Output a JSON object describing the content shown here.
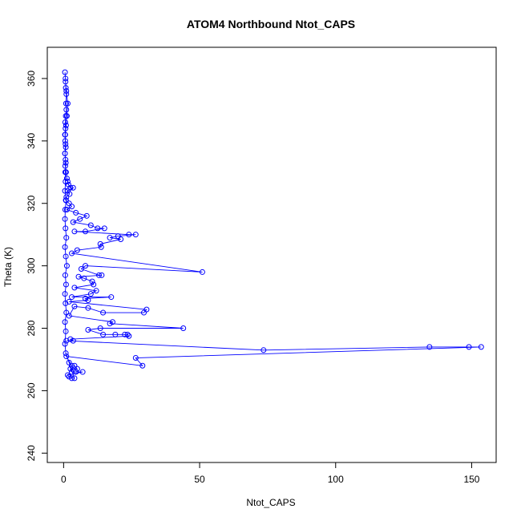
{
  "chart_data": {
    "type": "line",
    "title": "ATOM4 Northbound Ntot_CAPS",
    "xlabel": "Ntot_CAPS",
    "ylabel": "Theta (K)",
    "xlim": [
      -6,
      159
    ],
    "ylim": [
      237,
      370
    ],
    "xticks": [
      0,
      50,
      100,
      150
    ],
    "yticks": [
      240,
      260,
      280,
      300,
      320,
      340,
      360
    ],
    "grid": false,
    "legend": "none",
    "series_color": "#0000ff",
    "marker": "open-circle",
    "points": [
      [
        0.5,
        362
      ],
      [
        0.7,
        360
      ],
      [
        0.8,
        357
      ],
      [
        1.0,
        355
      ],
      [
        0.9,
        352
      ],
      [
        1.0,
        350
      ],
      [
        0.8,
        348
      ],
      [
        0.6,
        346
      ],
      [
        0.7,
        344
      ],
      [
        0.5,
        342
      ],
      [
        0.6,
        340
      ],
      [
        0.8,
        338
      ],
      [
        0.5,
        336
      ],
      [
        0.7,
        334
      ],
      [
        0.6,
        332
      ],
      [
        0.9,
        330
      ],
      [
        1.2,
        328
      ],
      [
        1.5,
        327
      ],
      [
        1.8,
        326
      ],
      [
        2.5,
        325
      ],
      [
        3.5,
        325
      ],
      [
        1.5,
        324
      ],
      [
        2.2,
        323
      ],
      [
        1.0,
        322
      ],
      [
        0.8,
        321
      ],
      [
        2.0,
        320
      ],
      [
        3.0,
        319
      ],
      [
        1.2,
        318
      ],
      [
        4.5,
        317
      ],
      [
        8.5,
        316
      ],
      [
        6.0,
        315
      ],
      [
        3.5,
        314
      ],
      [
        10.0,
        313
      ],
      [
        12.5,
        312
      ],
      [
        15.0,
        312
      ],
      [
        8.0,
        311
      ],
      [
        4.0,
        311
      ],
      [
        24.0,
        310
      ],
      [
        26.5,
        310
      ],
      [
        20.0,
        309.5
      ],
      [
        17.0,
        309
      ],
      [
        21.0,
        308.5
      ],
      [
        13.5,
        307
      ],
      [
        13.8,
        306
      ],
      [
        5.0,
        305
      ],
      [
        3.0,
        304
      ],
      [
        51.0,
        298
      ],
      [
        8.0,
        300
      ],
      [
        6.5,
        299
      ],
      [
        13.0,
        297
      ],
      [
        14.0,
        297
      ],
      [
        5.5,
        296.5
      ],
      [
        7.5,
        296
      ],
      [
        10.5,
        295
      ],
      [
        11.0,
        294
      ],
      [
        4.0,
        293
      ],
      [
        12.0,
        292
      ],
      [
        10.0,
        291
      ],
      [
        3.0,
        290
      ],
      [
        17.5,
        290
      ],
      [
        8.0,
        289.5
      ],
      [
        9.0,
        289
      ],
      [
        2.0,
        288.5
      ],
      [
        30.5,
        286
      ],
      [
        29.5,
        285
      ],
      [
        14.5,
        285
      ],
      [
        9.0,
        286.5
      ],
      [
        4.0,
        287
      ],
      [
        2.0,
        284
      ],
      [
        18.0,
        282
      ],
      [
        17.0,
        281.5
      ],
      [
        44.0,
        280
      ],
      [
        13.5,
        280
      ],
      [
        9.0,
        279.5
      ],
      [
        14.5,
        278
      ],
      [
        19.0,
        278
      ],
      [
        22.5,
        278
      ],
      [
        23.5,
        278
      ],
      [
        24.0,
        277.5
      ],
      [
        2.5,
        276.5
      ],
      [
        3.5,
        276
      ],
      [
        1.0,
        276
      ],
      [
        73.5,
        273
      ],
      [
        134.5,
        274
      ],
      [
        149.0,
        274
      ],
      [
        153.5,
        274
      ],
      [
        26.5,
        270.5
      ],
      [
        29.0,
        268
      ],
      [
        1.0,
        271
      ],
      [
        3.0,
        268
      ],
      [
        4.0,
        268
      ],
      [
        5.0,
        267
      ],
      [
        2.5,
        267
      ],
      [
        3.0,
        266
      ],
      [
        4.5,
        266
      ],
      [
        7.0,
        266
      ],
      [
        1.5,
        265
      ],
      [
        2.0,
        264.5
      ],
      [
        3.0,
        264
      ],
      [
        4.0,
        264
      ],
      [
        2.0,
        269
      ],
      [
        0.8,
        272
      ],
      [
        0.5,
        275
      ],
      [
        0.8,
        279
      ],
      [
        0.5,
        282
      ],
      [
        1.0,
        285
      ],
      [
        0.7,
        288
      ],
      [
        0.5,
        291
      ],
      [
        0.9,
        294
      ],
      [
        0.6,
        297
      ],
      [
        1.2,
        300
      ],
      [
        0.8,
        303
      ],
      [
        0.5,
        306
      ],
      [
        1.0,
        309
      ],
      [
        0.7,
        312
      ],
      [
        0.5,
        315
      ],
      [
        0.6,
        318
      ],
      [
        0.9,
        321
      ],
      [
        0.5,
        324
      ],
      [
        0.7,
        327
      ],
      [
        0.6,
        330
      ],
      [
        0.8,
        333
      ],
      [
        0.5,
        336
      ],
      [
        0.7,
        339
      ],
      [
        0.6,
        342
      ],
      [
        0.9,
        345
      ],
      [
        1.2,
        348
      ],
      [
        1.5,
        352
      ],
      [
        1.0,
        356
      ],
      [
        0.7,
        359
      ]
    ]
  }
}
